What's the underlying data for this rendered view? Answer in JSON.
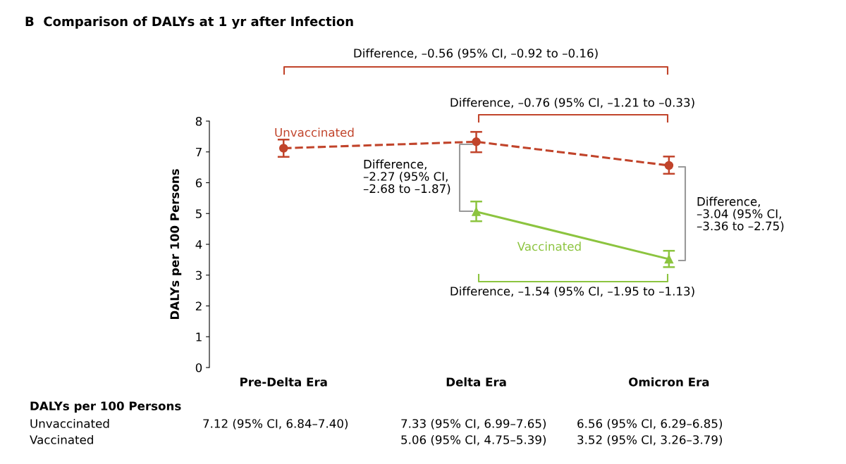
{
  "chart_data": {
    "type": "line",
    "title": "B  Comparison of DALYs at 1 yr after Infection",
    "ylabel": "DALYs per 100 Persons",
    "categories": [
      "Pre-Delta Era",
      "Delta Era",
      "Omicron Era"
    ],
    "ylim": [
      0,
      8
    ],
    "yticks": [
      0,
      1,
      2,
      3,
      4,
      5,
      6,
      7,
      8
    ],
    "grid": false,
    "series": [
      {
        "name": "Unvaccinated",
        "color": "#c1442b",
        "marker": "circle",
        "line_style": "dashed",
        "values": [
          7.12,
          7.33,
          6.56
        ],
        "errors": [
          [
            6.84,
            7.4
          ],
          [
            6.99,
            7.65
          ],
          [
            6.29,
            6.85
          ]
        ],
        "value_labels": [
          "7.12 (95% CI, 6.84–7.40)",
          "7.33 (95% CI, 6.99–7.65)",
          "6.56 (95% CI, 6.29–6.85)"
        ]
      },
      {
        "name": "Vaccinated",
        "color": "#8cc43f",
        "marker": "triangle",
        "line_style": "solid",
        "values": [
          null,
          5.06,
          3.52
        ],
        "errors": [
          null,
          [
            4.75,
            5.39
          ],
          [
            3.26,
            3.79
          ]
        ],
        "value_labels": [
          null,
          "5.06 (95% CI, 4.75–5.39)",
          "3.52 (95% CI, 3.26–3.79)"
        ]
      }
    ],
    "annotations": [
      "Difference, –0.56 (95% CI, –0.92 to –0.16)",
      "Difference, –0.76 (95% CI, –1.21 to –0.33)",
      "Difference,\n–2.27 (95% CI,\n–2.68 to –1.87)",
      "Difference,\n–3.04 (95% CI,\n–3.36 to –2.75)",
      "Difference, –1.54 (95% CI, –1.95 to –1.13)",
      "DALYs per 100 Persons"
    ]
  }
}
